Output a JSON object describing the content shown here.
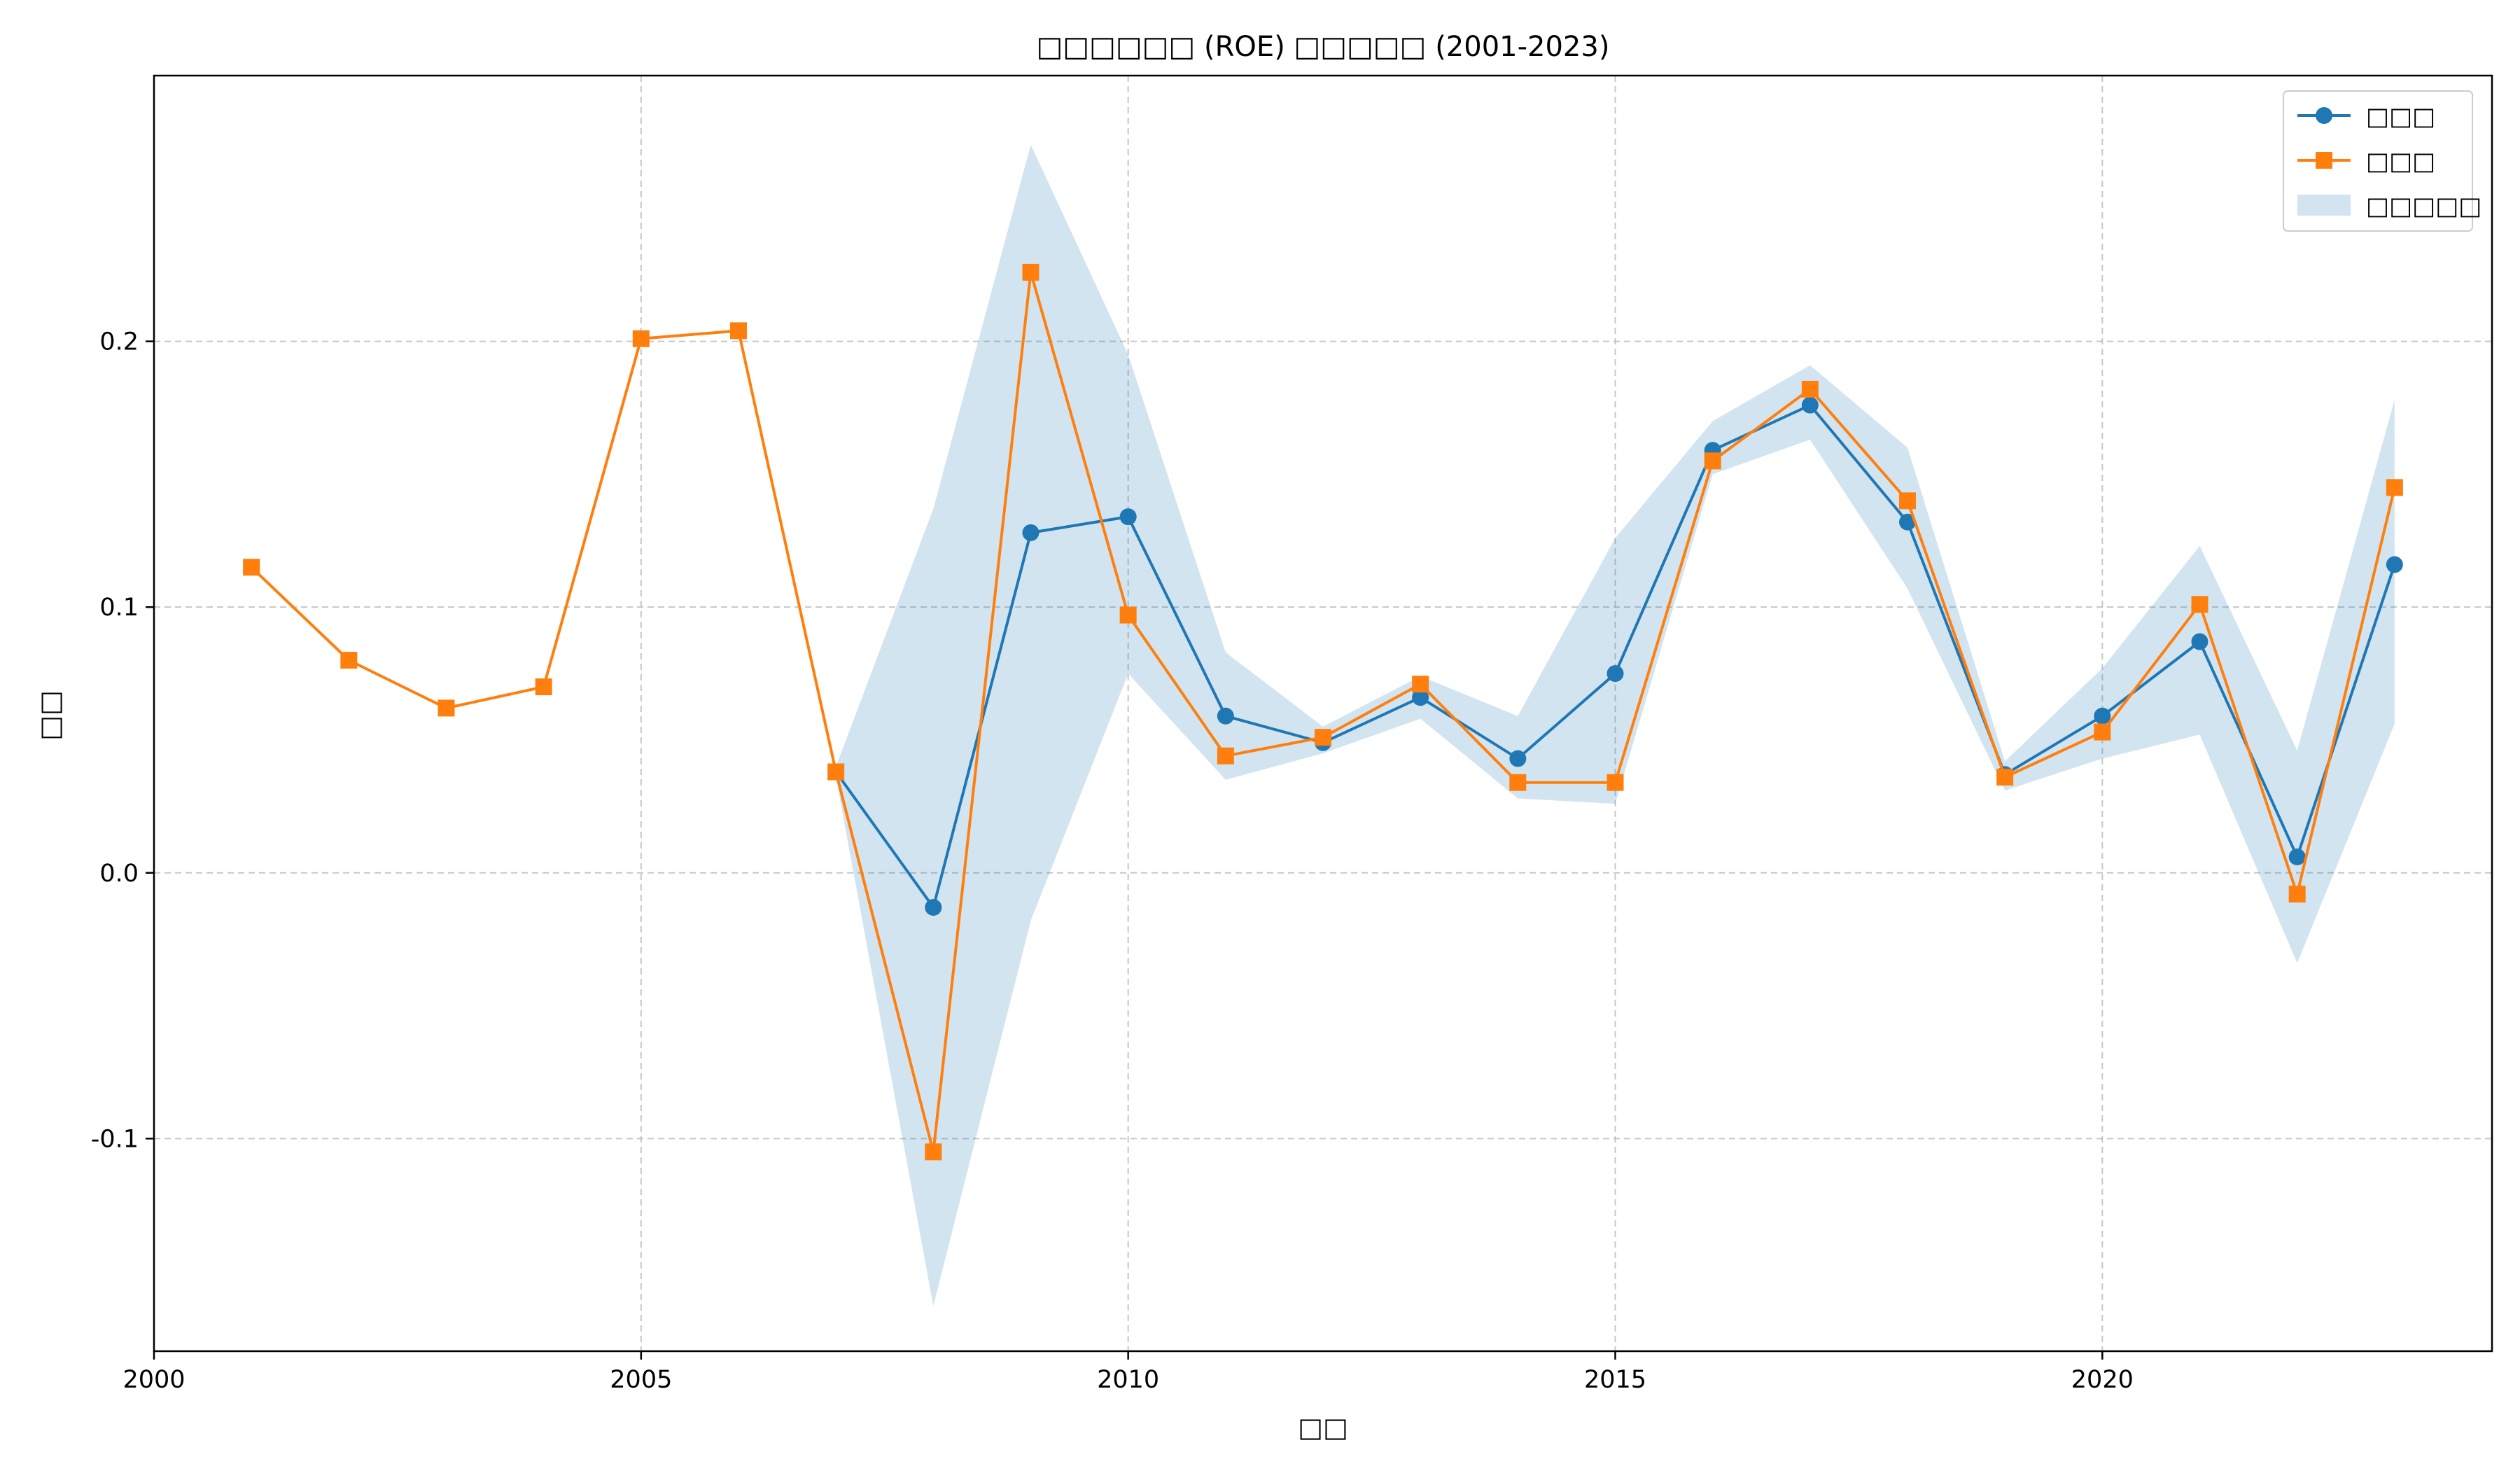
{
  "chart_data": {
    "type": "line",
    "title": "□□□□□□ (ROE) □□□□□ (2001-2023)",
    "xlabel": "□□",
    "ylabel": "□□",
    "xlim": [
      2000,
      2024
    ],
    "ylim": [
      -0.18,
      0.3
    ],
    "x_ticks": [
      2000,
      2005,
      2010,
      2015,
      2020
    ],
    "x_tick_labels": [
      "2000",
      "2005",
      "2010",
      "2015",
      "2020"
    ],
    "y_ticks": [
      -0.1,
      0.0,
      0.1,
      0.2
    ],
    "y_tick_labels": [
      "-0.1",
      "0.0",
      "0.1",
      "0.2"
    ],
    "grid": true,
    "legend_position": "top-right",
    "series": [
      {
        "name": "□□□",
        "kind": "line",
        "marker": "circle",
        "color": "#1f77b4",
        "x": [
          2007,
          2008,
          2009,
          2010,
          2011,
          2012,
          2013,
          2014,
          2015,
          2016,
          2017,
          2018,
          2019,
          2020,
          2021,
          2022,
          2023
        ],
        "y": [
          0.038,
          -0.013,
          0.128,
          0.134,
          0.059,
          0.049,
          0.066,
          0.043,
          0.075,
          0.159,
          0.176,
          0.132,
          0.037,
          0.059,
          0.087,
          0.006,
          0.116
        ]
      },
      {
        "name": "□□□",
        "kind": "line",
        "marker": "square",
        "color": "#ff7f0e",
        "x": [
          2001,
          2002,
          2003,
          2004,
          2005,
          2006,
          2007,
          2008,
          2009,
          2010,
          2011,
          2012,
          2013,
          2014,
          2015,
          2016,
          2017,
          2018,
          2019,
          2020,
          2021,
          2022,
          2023
        ],
        "y": [
          0.115,
          0.08,
          0.062,
          0.07,
          0.201,
          0.204,
          0.038,
          -0.105,
          0.226,
          0.097,
          0.044,
          0.051,
          0.071,
          0.034,
          0.034,
          0.155,
          0.182,
          0.14,
          0.036,
          0.053,
          0.101,
          -0.008,
          0.145
        ]
      },
      {
        "name": "□□□□□",
        "kind": "band",
        "color": "#1f77b4",
        "opacity": 0.2,
        "x": [
          2007,
          2008,
          2009,
          2010,
          2011,
          2012,
          2013,
          2014,
          2015,
          2016,
          2017,
          2018,
          2019,
          2020,
          2021,
          2022,
          2023
        ],
        "upper": [
          0.04,
          0.137,
          0.274,
          0.195,
          0.083,
          0.055,
          0.074,
          0.059,
          0.126,
          0.17,
          0.191,
          0.16,
          0.042,
          0.077,
          0.123,
          0.046,
          0.178
        ],
        "lower": [
          0.036,
          -0.163,
          -0.018,
          0.075,
          0.035,
          0.045,
          0.058,
          0.028,
          0.026,
          0.15,
          0.163,
          0.107,
          0.031,
          0.043,
          0.052,
          -0.034,
          0.056
        ]
      }
    ]
  }
}
